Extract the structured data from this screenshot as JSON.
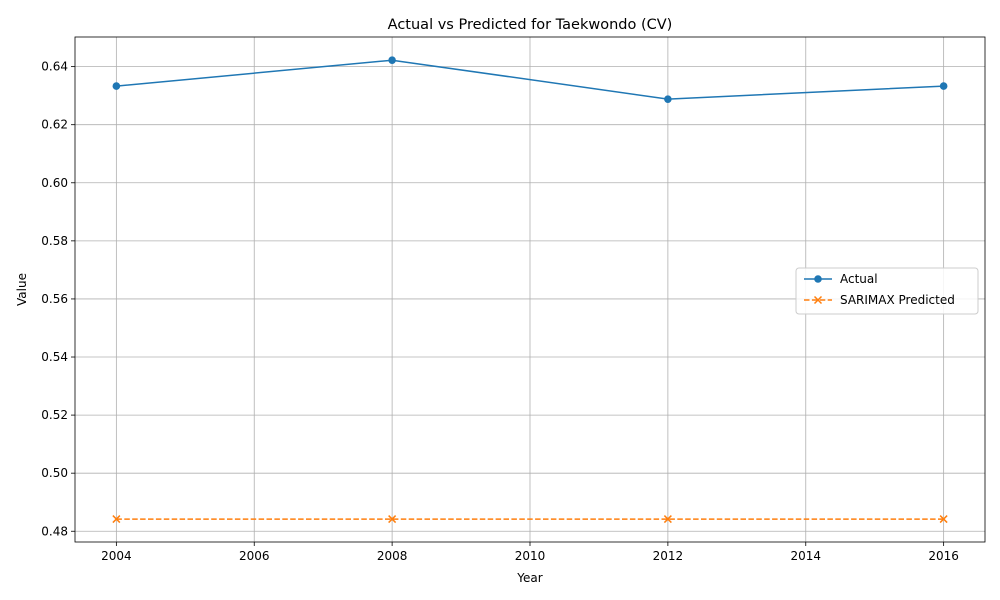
{
  "chart_data": {
    "type": "line",
    "title": "Actual vs Predicted for Taekwondo (CV)",
    "xlabel": "Year",
    "ylabel": "Value",
    "x": [
      2004,
      2008,
      2012,
      2016
    ],
    "xlim": [
      2003.4,
      2016.6
    ],
    "ylim": [
      0.4763,
      0.6502
    ],
    "xticks": [
      2004,
      2006,
      2008,
      2010,
      2012,
      2014,
      2016
    ],
    "yticks": [
      0.48,
      0.5,
      0.52,
      0.54,
      0.56,
      0.58,
      0.6,
      0.62,
      0.64
    ],
    "ytick_labels": [
      "0.48",
      "0.50",
      "0.52",
      "0.54",
      "0.56",
      "0.58",
      "0.60",
      "0.62",
      "0.64"
    ],
    "grid": true,
    "legend_position": "center-right",
    "series": [
      {
        "name": "Actual",
        "values": [
          0.6333,
          0.6422,
          0.6288,
          0.6333
        ],
        "color": "#1f77b4",
        "marker": "circle",
        "linestyle": "solid"
      },
      {
        "name": "SARIMAX Predicted",
        "values": [
          0.4842,
          0.4842,
          0.4842,
          0.4842
        ],
        "color": "#ff7f0e",
        "marker": "x",
        "linestyle": "dashed"
      }
    ]
  }
}
